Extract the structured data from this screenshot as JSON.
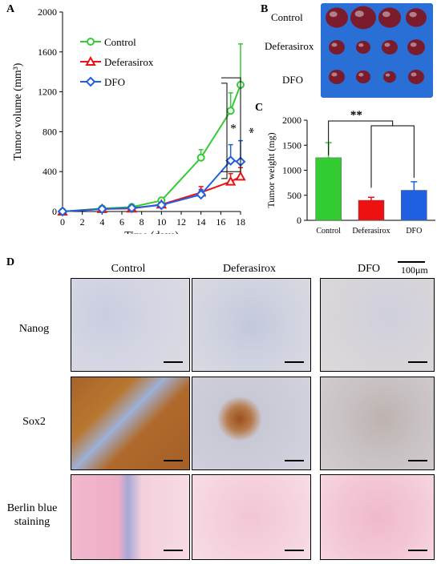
{
  "panels": {
    "a": "A",
    "b": "B",
    "c": "C",
    "d": "D"
  },
  "chart_a": {
    "type": "line",
    "xlabel": "Time (days)",
    "ylabel": "Tumor volume (mm³)",
    "xlim": [
      0,
      18
    ],
    "ylim": [
      0,
      2000
    ],
    "x_ticks": [
      0,
      2,
      4,
      6,
      8,
      10,
      12,
      14,
      16,
      18
    ],
    "y_ticks": [
      0,
      400,
      800,
      1200,
      1600,
      2000
    ],
    "x": [
      0,
      4,
      7,
      10,
      14,
      17,
      18
    ],
    "series": [
      {
        "name": "Control",
        "color": "#33cc33",
        "marker": "circle",
        "values": [
          0,
          30,
          45,
          110,
          540,
          1010,
          1270
        ],
        "errors": [
          0,
          10,
          15,
          30,
          80,
          180,
          410
        ]
      },
      {
        "name": "Deferasirox",
        "color": "#ee1111",
        "marker": "triangle",
        "values": [
          0,
          25,
          30,
          70,
          190,
          300,
          350
        ],
        "errors": [
          0,
          8,
          10,
          20,
          60,
          80,
          90
        ]
      },
      {
        "name": "DFO",
        "color": "#1f5fe0",
        "marker": "diamond",
        "values": [
          0,
          25,
          35,
          65,
          170,
          510,
          500
        ],
        "errors": [
          0,
          8,
          10,
          20,
          50,
          160,
          210
        ]
      }
    ],
    "significance": "* *"
  },
  "chart_c": {
    "type": "bar",
    "ylabel": "Tumor weight (mg)",
    "ylim": [
      0,
      2000
    ],
    "y_ticks": [
      0,
      500,
      1000,
      1500,
      2000
    ],
    "categories": [
      "Control",
      "Deferasirox",
      "DFO"
    ],
    "values": [
      1250,
      400,
      600
    ],
    "errors": [
      300,
      60,
      170
    ],
    "colors": [
      "#33cc33",
      "#ee1111",
      "#1f5fe0"
    ],
    "significance": "**"
  },
  "panel_b": {
    "rows": [
      "Control",
      "Deferasirox",
      "DFO"
    ],
    "tumor_color": "#7a1c2c",
    "background_color": "#2a6fd6"
  },
  "panel_d": {
    "columns": [
      "Control",
      "Deferasirox",
      "DFO"
    ],
    "rows": [
      "Nanog",
      "Sox2",
      "Berlin blue staining"
    ],
    "scale_label": "100μm"
  }
}
